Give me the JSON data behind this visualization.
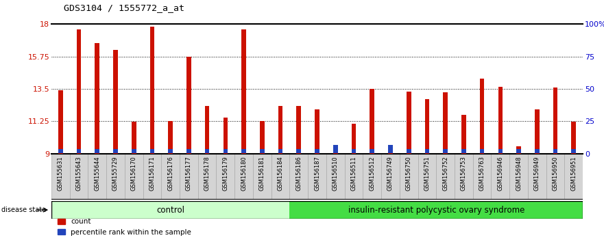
{
  "title": "GDS3104 / 1555772_a_at",
  "samples": [
    "GSM155631",
    "GSM155643",
    "GSM155644",
    "GSM155729",
    "GSM156170",
    "GSM156171",
    "GSM156176",
    "GSM156177",
    "GSM156178",
    "GSM156179",
    "GSM156180",
    "GSM156181",
    "GSM156184",
    "GSM156186",
    "GSM156187",
    "GSM156510",
    "GSM156511",
    "GSM156512",
    "GSM156749",
    "GSM156750",
    "GSM156751",
    "GSM156752",
    "GSM156753",
    "GSM156763",
    "GSM156946",
    "GSM156948",
    "GSM156949",
    "GSM156950",
    "GSM156951"
  ],
  "red_values": [
    13.4,
    17.65,
    16.7,
    16.2,
    11.2,
    17.85,
    11.25,
    15.75,
    12.3,
    11.5,
    17.65,
    11.25,
    12.3,
    12.3,
    12.1,
    9.15,
    11.1,
    13.5,
    9.2,
    13.3,
    12.8,
    13.25,
    11.7,
    14.2,
    13.65,
    9.5,
    12.1,
    13.6,
    11.2
  ],
  "blue_heights": [
    0.28,
    0.28,
    0.28,
    0.28,
    0.28,
    0.28,
    0.28,
    0.28,
    0.28,
    0.28,
    0.28,
    0.28,
    0.28,
    0.28,
    0.28,
    0.55,
    0.28,
    0.28,
    0.55,
    0.28,
    0.28,
    0.28,
    0.28,
    0.28,
    0.28,
    0.28,
    0.28,
    0.28,
    0.28
  ],
  "control_count": 13,
  "disease_label": "insulin-resistant polycystic ovary syndrome",
  "control_label": "control",
  "disease_state_label": "disease state",
  "ymin": 9,
  "ymax": 18,
  "yticks_left": [
    9,
    11.25,
    13.5,
    15.75,
    18
  ],
  "ytick_labels_left": [
    "9",
    "11.25",
    "13.5",
    "15.75",
    "18"
  ],
  "yticks_right": [
    0,
    25,
    50,
    75,
    100
  ],
  "ytick_labels_right": [
    "0",
    "25",
    "50",
    "75",
    "100%"
  ],
  "bar_color_red": "#cc1100",
  "bar_color_blue": "#2244bb",
  "bg_color_control": "#ccffcc",
  "bg_color_disease": "#44dd44",
  "legend_count": "count",
  "legend_pct": "percentile rank within the sample",
  "bar_width": 0.25
}
